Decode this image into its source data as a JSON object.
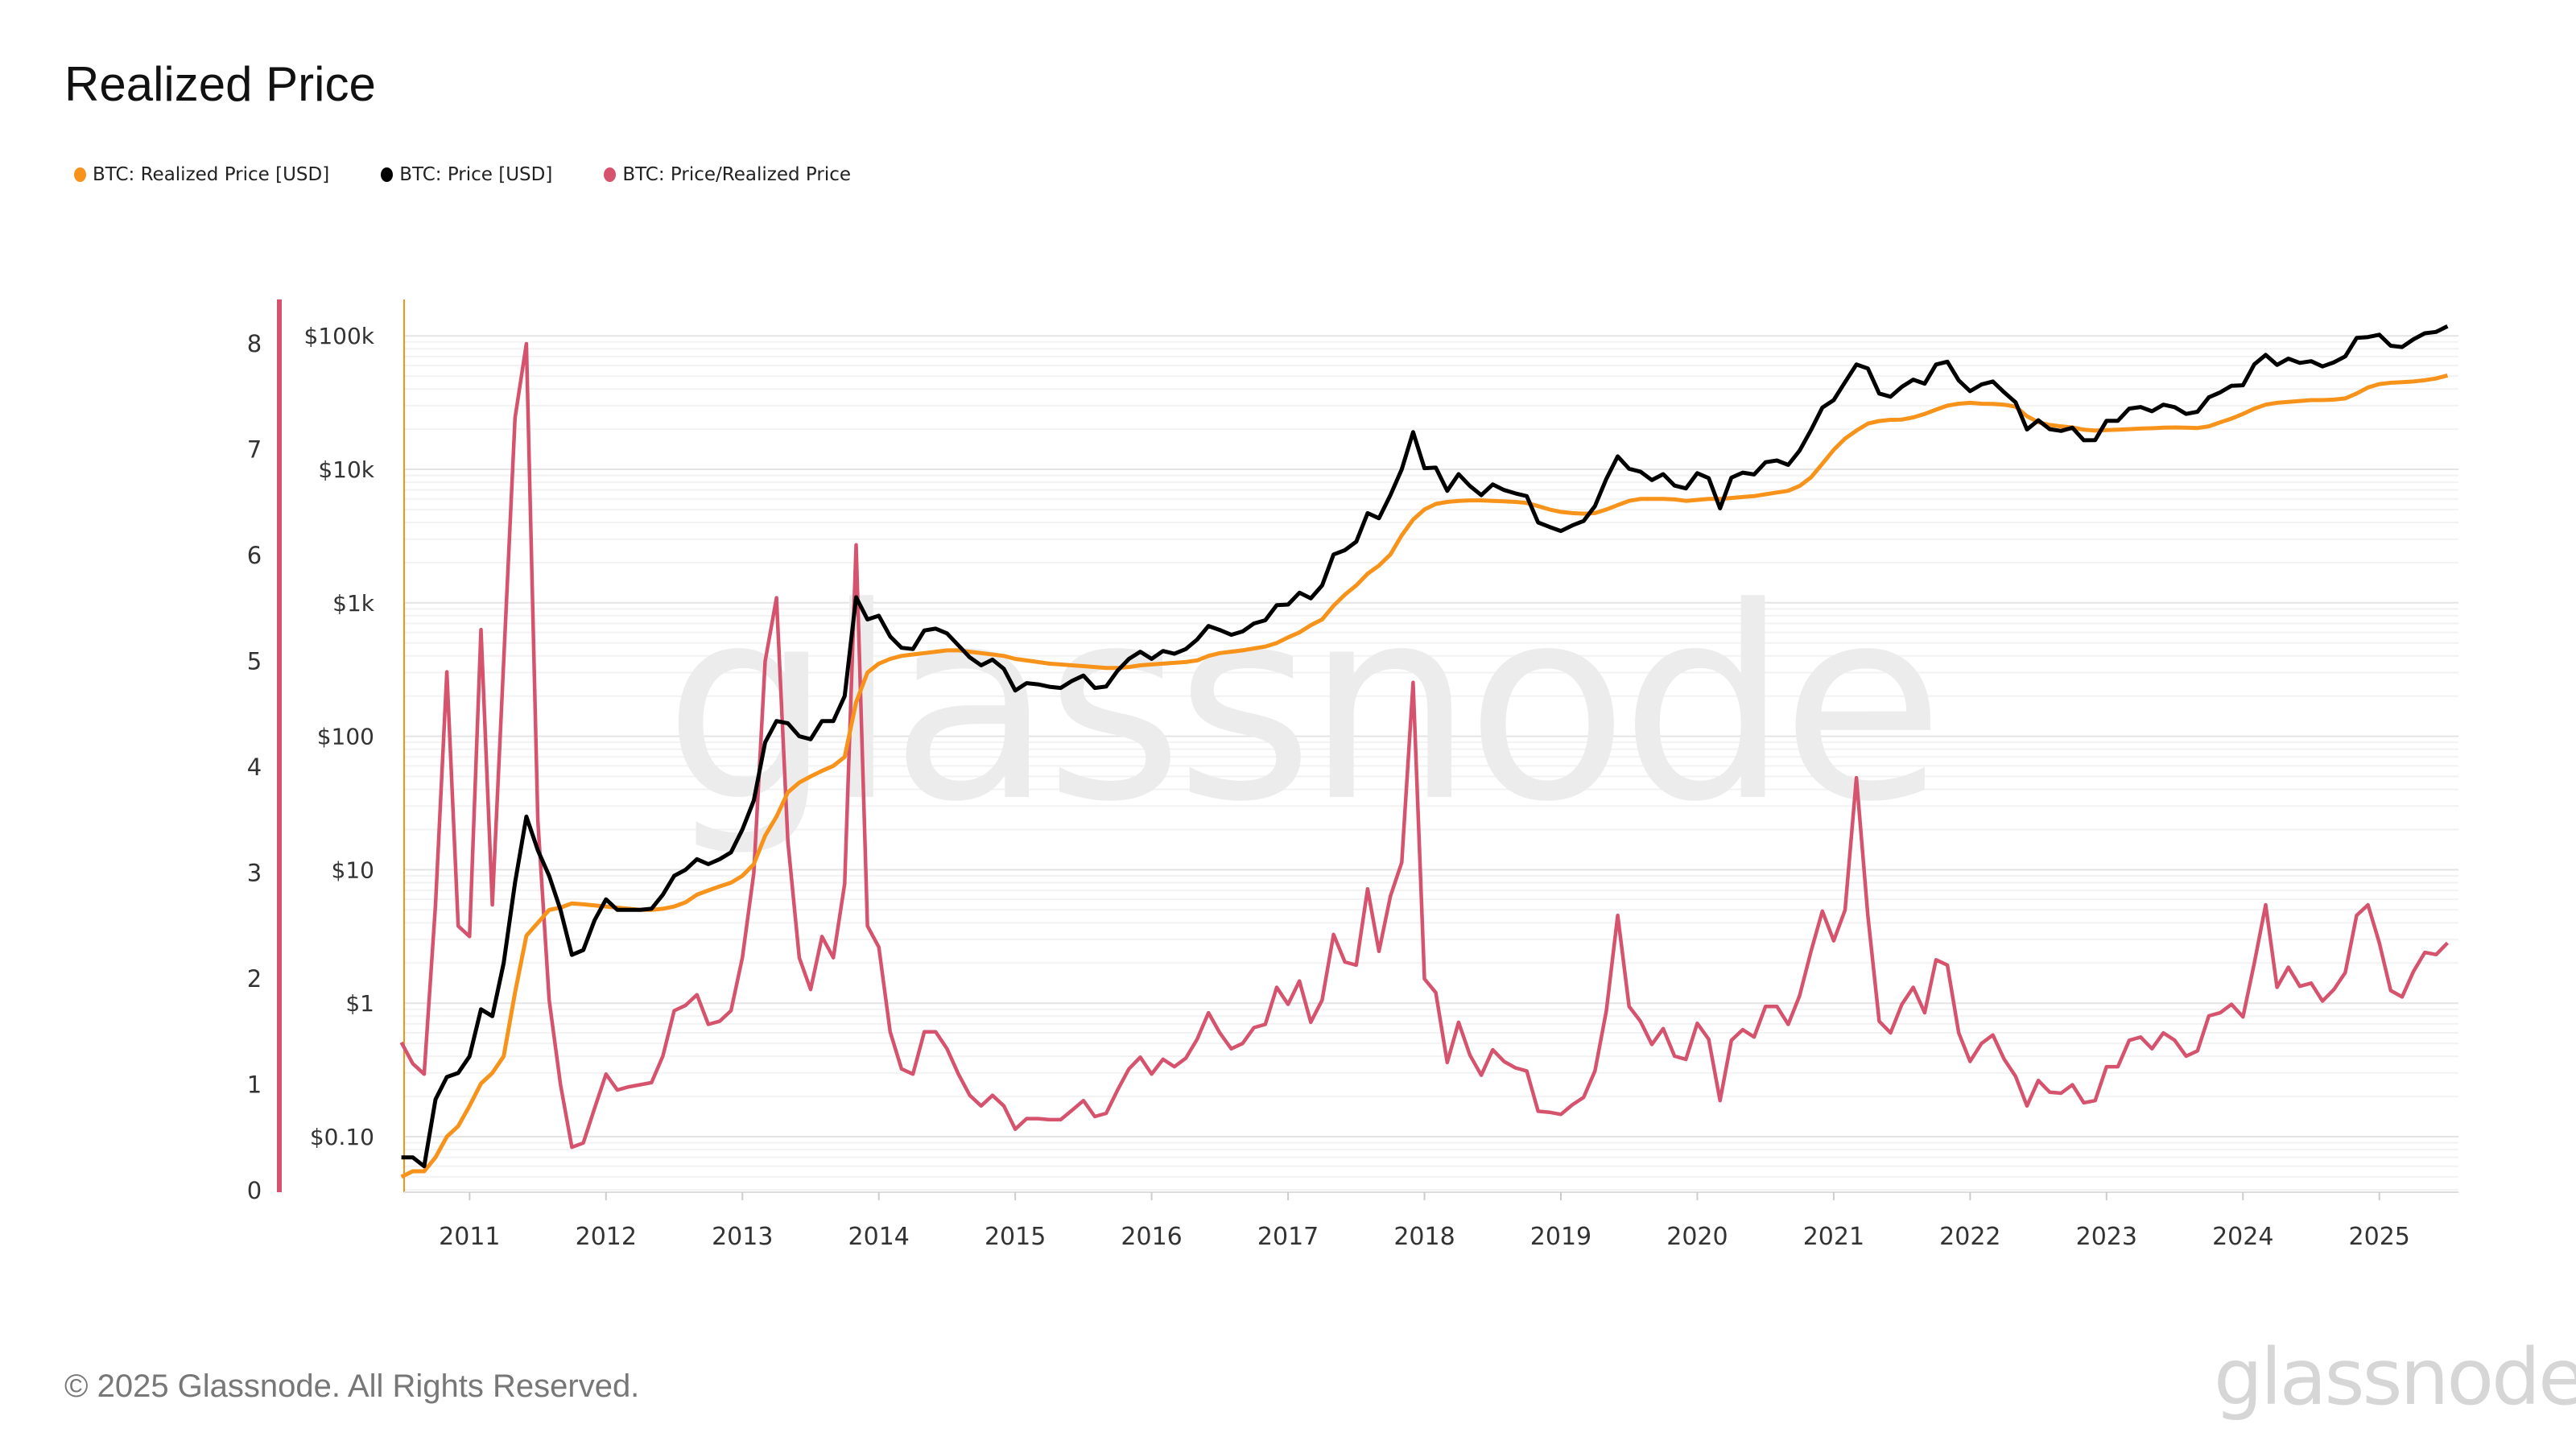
{
  "title": "Realized Price",
  "footer": "© 2025 Glassnode. All Rights Reserved.",
  "logo": "glassnode",
  "watermark": "glassnode",
  "colors": {
    "realized": "#f7931a",
    "price": "#000000",
    "ratio": "#d6536d",
    "grid": "#ececec"
  },
  "legend": [
    {
      "label": "BTC: Realized Price [USD]",
      "color": "#f7931a"
    },
    {
      "label": "BTC: Price [USD]",
      "color": "#000000"
    },
    {
      "label": "BTC: Price/Realized Price",
      "color": "#d6536d"
    }
  ],
  "chart_data": {
    "type": "line",
    "title": "Realized Price",
    "grid": true,
    "legend_placement": "top-left",
    "x_ticks": [
      "2011",
      "2012",
      "2013",
      "2014",
      "2015",
      "2016",
      "2017",
      "2018",
      "2019",
      "2020",
      "2021",
      "2022",
      "2023",
      "2024",
      "2025"
    ],
    "y_left": {
      "scale": "linear",
      "range": [
        0,
        8.5
      ],
      "ticks": [
        "0",
        "1",
        "2",
        "3",
        "4",
        "5",
        "6",
        "7",
        "8"
      ]
    },
    "y_right": {
      "scale": "log",
      "range": [
        0.05,
        250000
      ],
      "ticks": [
        "$0.10",
        "$1",
        "$10",
        "$100",
        "$1k",
        "$10k",
        "$100k"
      ],
      "tick_values": [
        0.1,
        1,
        10,
        100,
        1000,
        10000,
        100000
      ]
    },
    "x": [
      "2010-07",
      "2010-08",
      "2010-09",
      "2010-10",
      "2010-11",
      "2010-12",
      "2011-01",
      "2011-02",
      "2011-03",
      "2011-04",
      "2011-05",
      "2011-06",
      "2011-07",
      "2011-08",
      "2011-09",
      "2011-10",
      "2011-11",
      "2011-12",
      "2012-01",
      "2012-02",
      "2012-03",
      "2012-04",
      "2012-05",
      "2012-06",
      "2012-07",
      "2012-08",
      "2012-09",
      "2012-10",
      "2012-11",
      "2012-12",
      "2013-01",
      "2013-02",
      "2013-03",
      "2013-04",
      "2013-05",
      "2013-06",
      "2013-07",
      "2013-08",
      "2013-09",
      "2013-10",
      "2013-11",
      "2013-12",
      "2014-01",
      "2014-02",
      "2014-03",
      "2014-04",
      "2014-05",
      "2014-06",
      "2014-07",
      "2014-08",
      "2014-09",
      "2014-10",
      "2014-11",
      "2014-12",
      "2015-01",
      "2015-02",
      "2015-03",
      "2015-04",
      "2015-05",
      "2015-06",
      "2015-07",
      "2015-08",
      "2015-09",
      "2015-10",
      "2015-11",
      "2015-12",
      "2016-01",
      "2016-02",
      "2016-03",
      "2016-04",
      "2016-05",
      "2016-06",
      "2016-07",
      "2016-08",
      "2016-09",
      "2016-10",
      "2016-11",
      "2016-12",
      "2017-01",
      "2017-02",
      "2017-03",
      "2017-04",
      "2017-05",
      "2017-06",
      "2017-07",
      "2017-08",
      "2017-09",
      "2017-10",
      "2017-11",
      "2017-12",
      "2018-01",
      "2018-02",
      "2018-03",
      "2018-04",
      "2018-05",
      "2018-06",
      "2018-07",
      "2018-08",
      "2018-09",
      "2018-10",
      "2018-11",
      "2018-12",
      "2019-01",
      "2019-02",
      "2019-03",
      "2019-04",
      "2019-05",
      "2019-06",
      "2019-07",
      "2019-08",
      "2019-09",
      "2019-10",
      "2019-11",
      "2019-12",
      "2020-01",
      "2020-02",
      "2020-03",
      "2020-04",
      "2020-05",
      "2020-06",
      "2020-07",
      "2020-08",
      "2020-09",
      "2020-10",
      "2020-11",
      "2020-12",
      "2021-01",
      "2021-02",
      "2021-03",
      "2021-04",
      "2021-05",
      "2021-06",
      "2021-07",
      "2021-08",
      "2021-09",
      "2021-10",
      "2021-11",
      "2021-12",
      "2022-01",
      "2022-02",
      "2022-03",
      "2022-04",
      "2022-05",
      "2022-06",
      "2022-07",
      "2022-08",
      "2022-09",
      "2022-10",
      "2022-11",
      "2022-12",
      "2023-01",
      "2023-02",
      "2023-03",
      "2023-04",
      "2023-05",
      "2023-06",
      "2023-07",
      "2023-08",
      "2023-09",
      "2023-10",
      "2023-11",
      "2023-12",
      "2024-01",
      "2024-02",
      "2024-03",
      "2024-04",
      "2024-05",
      "2024-06",
      "2024-07",
      "2024-08",
      "2024-09",
      "2024-10",
      "2024-11",
      "2024-12",
      "2025-01",
      "2025-02",
      "2025-03",
      "2025-04",
      "2025-05",
      "2025-06",
      "2025-07"
    ],
    "series": [
      {
        "name": "BTC: Realized Price [USD]",
        "axis": "right",
        "values": [
          0.05,
          0.055,
          0.055,
          0.07,
          0.1,
          0.12,
          0.17,
          0.25,
          0.3,
          0.4,
          1.2,
          3.2,
          4,
          5,
          5.2,
          5.6,
          5.5,
          5.4,
          5.3,
          5.2,
          5.1,
          5.0,
          5.0,
          5.1,
          5.3,
          5.7,
          6.5,
          7,
          7.5,
          8,
          9,
          11,
          18,
          25,
          38,
          45,
          50,
          55,
          60,
          70,
          180,
          300,
          350,
          380,
          400,
          410,
          420,
          430,
          440,
          440,
          430,
          420,
          410,
          400,
          380,
          370,
          360,
          350,
          345,
          340,
          335,
          330,
          325,
          325,
          330,
          340,
          345,
          350,
          355,
          360,
          370,
          400,
          420,
          430,
          440,
          455,
          470,
          500,
          550,
          600,
          680,
          750,
          950,
          1150,
          1350,
          1650,
          1900,
          2300,
          3200,
          4200,
          5000,
          5500,
          5700,
          5800,
          5850,
          5850,
          5800,
          5750,
          5700,
          5600,
          5300,
          5000,
          4800,
          4700,
          4650,
          4700,
          5000,
          5400,
          5800,
          6000,
          6000,
          6000,
          5950,
          5800,
          5900,
          6000,
          6000,
          6100,
          6200,
          6300,
          6500,
          6700,
          6900,
          7500,
          8700,
          11000,
          14000,
          17000,
          19500,
          22000,
          23000,
          23500,
          23600,
          24500,
          26000,
          28000,
          30000,
          31000,
          31500,
          31000,
          30900,
          30500,
          29500,
          25000,
          22500,
          21500,
          21000,
          20600,
          19800,
          19500,
          19700,
          19800,
          20000,
          20200,
          20300,
          20500,
          20600,
          20500,
          20400,
          21000,
          22500,
          24000,
          26000,
          28500,
          30500,
          31500,
          32000,
          32500,
          33000,
          33000,
          33300,
          34000,
          37000,
          41000,
          43500,
          44500,
          45000,
          45500,
          46500,
          48000,
          50500
        ]
      },
      {
        "name": "BTC: Price [USD]",
        "axis": "right",
        "values": [
          0.07,
          0.07,
          0.06,
          0.19,
          0.28,
          0.3,
          0.4,
          0.9,
          0.8,
          2.0,
          8,
          25,
          14,
          9,
          5,
          2.3,
          2.5,
          4.2,
          6,
          5,
          5,
          5,
          5.1,
          6.5,
          9,
          10,
          12,
          11,
          12,
          13.5,
          20,
          33,
          90,
          130,
          125,
          100,
          95,
          130,
          130,
          200,
          1100,
          750,
          800,
          560,
          460,
          450,
          620,
          640,
          590,
          480,
          390,
          340,
          375,
          320,
          220,
          250,
          245,
          235,
          230,
          260,
          285,
          230,
          236,
          310,
          380,
          430,
          380,
          435,
          415,
          450,
          530,
          670,
          625,
          575,
          610,
          700,
          740,
          960,
          970,
          1190,
          1080,
          1350,
          2300,
          2480,
          2870,
          4700,
          4300,
          6400,
          10000,
          19000,
          10200,
          10300,
          6900,
          9200,
          7500,
          6400,
          7700,
          7000,
          6600,
          6300,
          4000,
          3700,
          3450,
          3800,
          4100,
          5300,
          8500,
          12500,
          10100,
          9600,
          8300,
          9200,
          7550,
          7200,
          9350,
          8600,
          5100,
          8650,
          9450,
          9150,
          11300,
          11650,
          10800,
          13800,
          19700,
          29000,
          33000,
          45000,
          61000,
          57000,
          37000,
          35000,
          41500,
          47000,
          43800,
          61000,
          64000,
          46300,
          38500,
          43200,
          45500,
          37700,
          31800,
          19900,
          23300,
          20000,
          19400,
          20500,
          16500,
          16550,
          23100,
          23100,
          28500,
          29300,
          27200,
          30500,
          29200,
          26000,
          27000,
          34600,
          37700,
          42300,
          42600,
          61200,
          72000,
          60600,
          67500,
          62700,
          64600,
          59000,
          63300,
          70200,
          96400,
          98000,
          102000,
          84300,
          82500,
          94200,
          104600,
          107000,
          118000
        ]
      },
      {
        "name": "BTC: Price/Realized Price",
        "axis": "left",
        "values": [
          1.4,
          1.2,
          1.1,
          2.7,
          4.9,
          2.5,
          2.4,
          5.3,
          2.7,
          5.0,
          7.3,
          8.0,
          3.5,
          1.8,
          1.0,
          0.41,
          0.45,
          0.78,
          1.1,
          0.95,
          0.98,
          1.0,
          1.02,
          1.27,
          1.7,
          1.75,
          1.85,
          1.57,
          1.6,
          1.7,
          2.2,
          3.0,
          5.0,
          5.6,
          3.3,
          2.2,
          1.9,
          2.4,
          2.2,
          2.9,
          6.1,
          2.5,
          2.3,
          1.5,
          1.15,
          1.1,
          1.5,
          1.5,
          1.34,
          1.1,
          0.9,
          0.8,
          0.9,
          0.8,
          0.58,
          0.68,
          0.68,
          0.67,
          0.67,
          0.76,
          0.85,
          0.7,
          0.73,
          0.95,
          1.15,
          1.26,
          1.1,
          1.24,
          1.17,
          1.25,
          1.43,
          1.68,
          1.49,
          1.34,
          1.39,
          1.54,
          1.57,
          1.92,
          1.76,
          1.98,
          1.59,
          1.8,
          2.42,
          2.16,
          2.13,
          2.85,
          2.26,
          2.78,
          3.1,
          4.8,
          2.0,
          1.87,
          1.21,
          1.59,
          1.28,
          1.09,
          1.33,
          1.22,
          1.16,
          1.13,
          0.75,
          0.74,
          0.72,
          0.81,
          0.88,
          1.13,
          1.7,
          2.6,
          1.74,
          1.6,
          1.38,
          1.53,
          1.27,
          1.24,
          1.58,
          1.43,
          0.85,
          1.42,
          1.52,
          1.45,
          1.74,
          1.74,
          1.57,
          1.84,
          2.26,
          2.64,
          2.36,
          2.65,
          3.9,
          2.6,
          1.6,
          1.49,
          1.76,
          1.92,
          1.68,
          2.18,
          2.13,
          1.49,
          1.22,
          1.39,
          1.47,
          1.24,
          1.08,
          0.8,
          1.04,
          0.93,
          0.92,
          1.0,
          0.83,
          0.85,
          1.17,
          1.17,
          1.42,
          1.45,
          1.34,
          1.49,
          1.42,
          1.27,
          1.32,
          1.65,
          1.68,
          1.76,
          1.64,
          2.15,
          2.7,
          1.92,
          2.11,
          1.93,
          1.96,
          1.79,
          1.9,
          2.06,
          2.6,
          2.7,
          2.34,
          1.89,
          1.83,
          2.07,
          2.25,
          2.23,
          2.34
        ]
      }
    ]
  }
}
